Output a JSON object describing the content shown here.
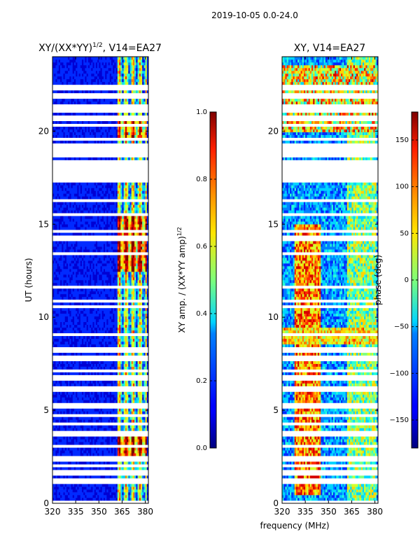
{
  "suptitle": "2019-10-05 0.0-24.0",
  "chart_data": [
    {
      "type": "heatmap",
      "title_prefix": "XY/(XX*YY)",
      "title_exp": "1/2",
      "title_suffix": ", V14=EA27",
      "xlabel": "",
      "ylabel": "UT (hours)",
      "xlim": [
        320,
        382
      ],
      "ylim": [
        0,
        24
      ],
      "xticks": [
        320,
        335,
        350,
        365,
        380
      ],
      "yticks": [
        0,
        5,
        10,
        15,
        20
      ],
      "colormap": "jet",
      "colorbar": {
        "label_prefix": "XY amp. / (XX*YY amp)",
        "label_exp": "1/2",
        "range": [
          0.0,
          1.0
        ],
        "ticks": [
          "0.0",
          "0.2",
          "0.4",
          "0.6",
          "0.8",
          "1.0"
        ]
      }
    },
    {
      "type": "heatmap",
      "title": "XY, V14=EA27",
      "xlabel": "frequency (MHz)",
      "ylabel": "",
      "xlim": [
        320,
        382
      ],
      "ylim": [
        0,
        24
      ],
      "xticks": [
        320,
        335,
        350,
        365,
        380
      ],
      "yticks": [
        0,
        5,
        10,
        15,
        20
      ],
      "colormap": "jet",
      "colorbar": {
        "label": "phase (deg)",
        "range": [
          -180,
          180
        ],
        "ticks": [
          "-150",
          "-100",
          "-50",
          "0",
          "50",
          "100",
          "150"
        ]
      }
    }
  ],
  "colors": {
    "jet_low": "#00007f",
    "jet_mid": "#7fff7f",
    "jet_high": "#7f0000",
    "blank_row": "#ffffff"
  }
}
